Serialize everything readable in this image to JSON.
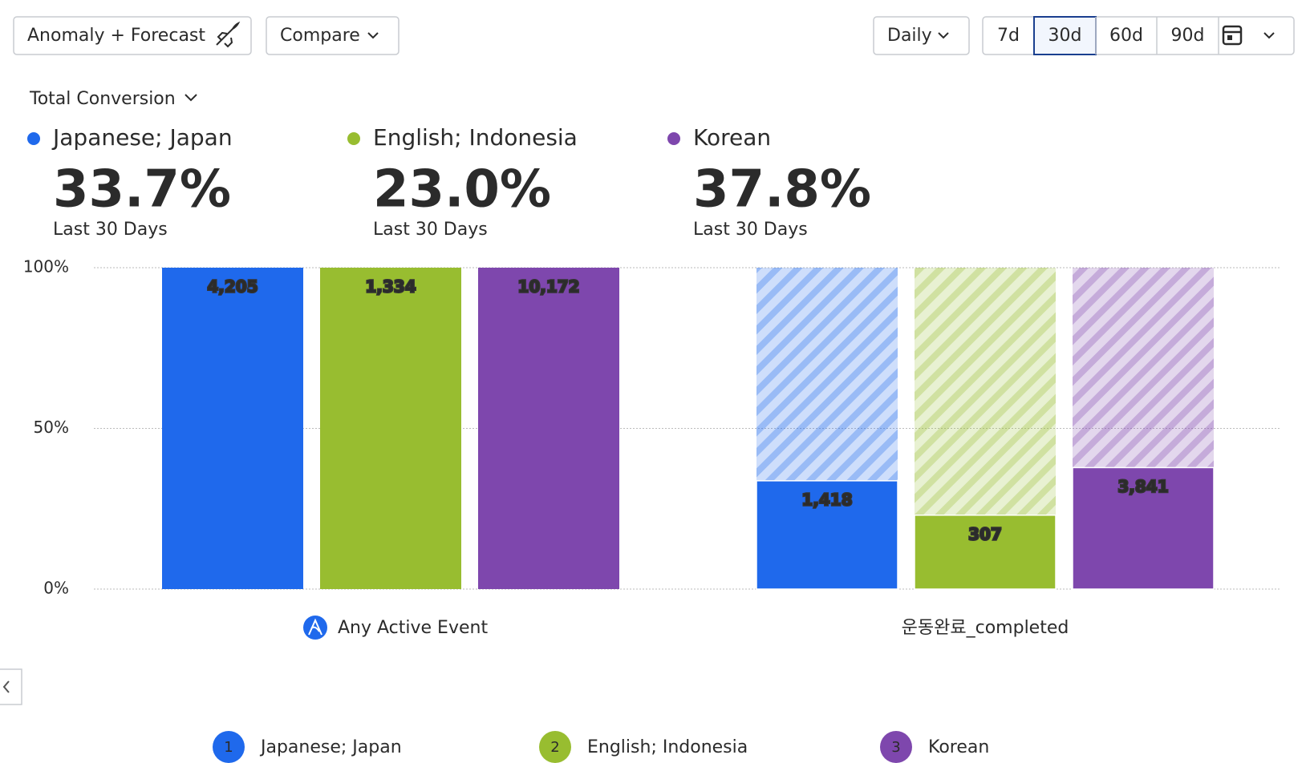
{
  "toolbar": {
    "anomaly_button": "Anomaly + Forecast",
    "compare_button": "Compare",
    "interval_button": "Daily",
    "ranges": [
      "7d",
      "30d",
      "60d",
      "90d"
    ],
    "selected_range": "30d"
  },
  "metric_selector": "Total Conversion",
  "chart_data": {
    "type": "funnel-bar",
    "categories": [
      "Any Active Event",
      "운동완료_completed"
    ],
    "period_label": "Last 30 Days",
    "ylim": [
      0,
      100
    ],
    "yticks": [
      {
        "value": 0,
        "label": "0%"
      },
      {
        "value": 50,
        "label": "50%"
      },
      {
        "value": 100,
        "label": "100%"
      }
    ],
    "grid": true,
    "series": [
      {
        "name": "Japanese; Japan",
        "color": "#1f69ec",
        "values": [
          100,
          33.7
        ],
        "conversion_label": "33.7%",
        "counts": [
          "4,205",
          "1,418"
        ],
        "legend_number": "1"
      },
      {
        "name": "English; Indonesia",
        "color": "#98bd30",
        "values": [
          100,
          23.0
        ],
        "conversion_label": "23.0%",
        "counts": [
          "1,334",
          "307"
        ],
        "legend_number": "2"
      },
      {
        "name": "Korean",
        "color": "#7e47ad",
        "values": [
          100,
          37.8
        ],
        "conversion_label": "37.8%",
        "counts": [
          "10,172",
          "3,841"
        ],
        "legend_number": "3"
      }
    ]
  }
}
